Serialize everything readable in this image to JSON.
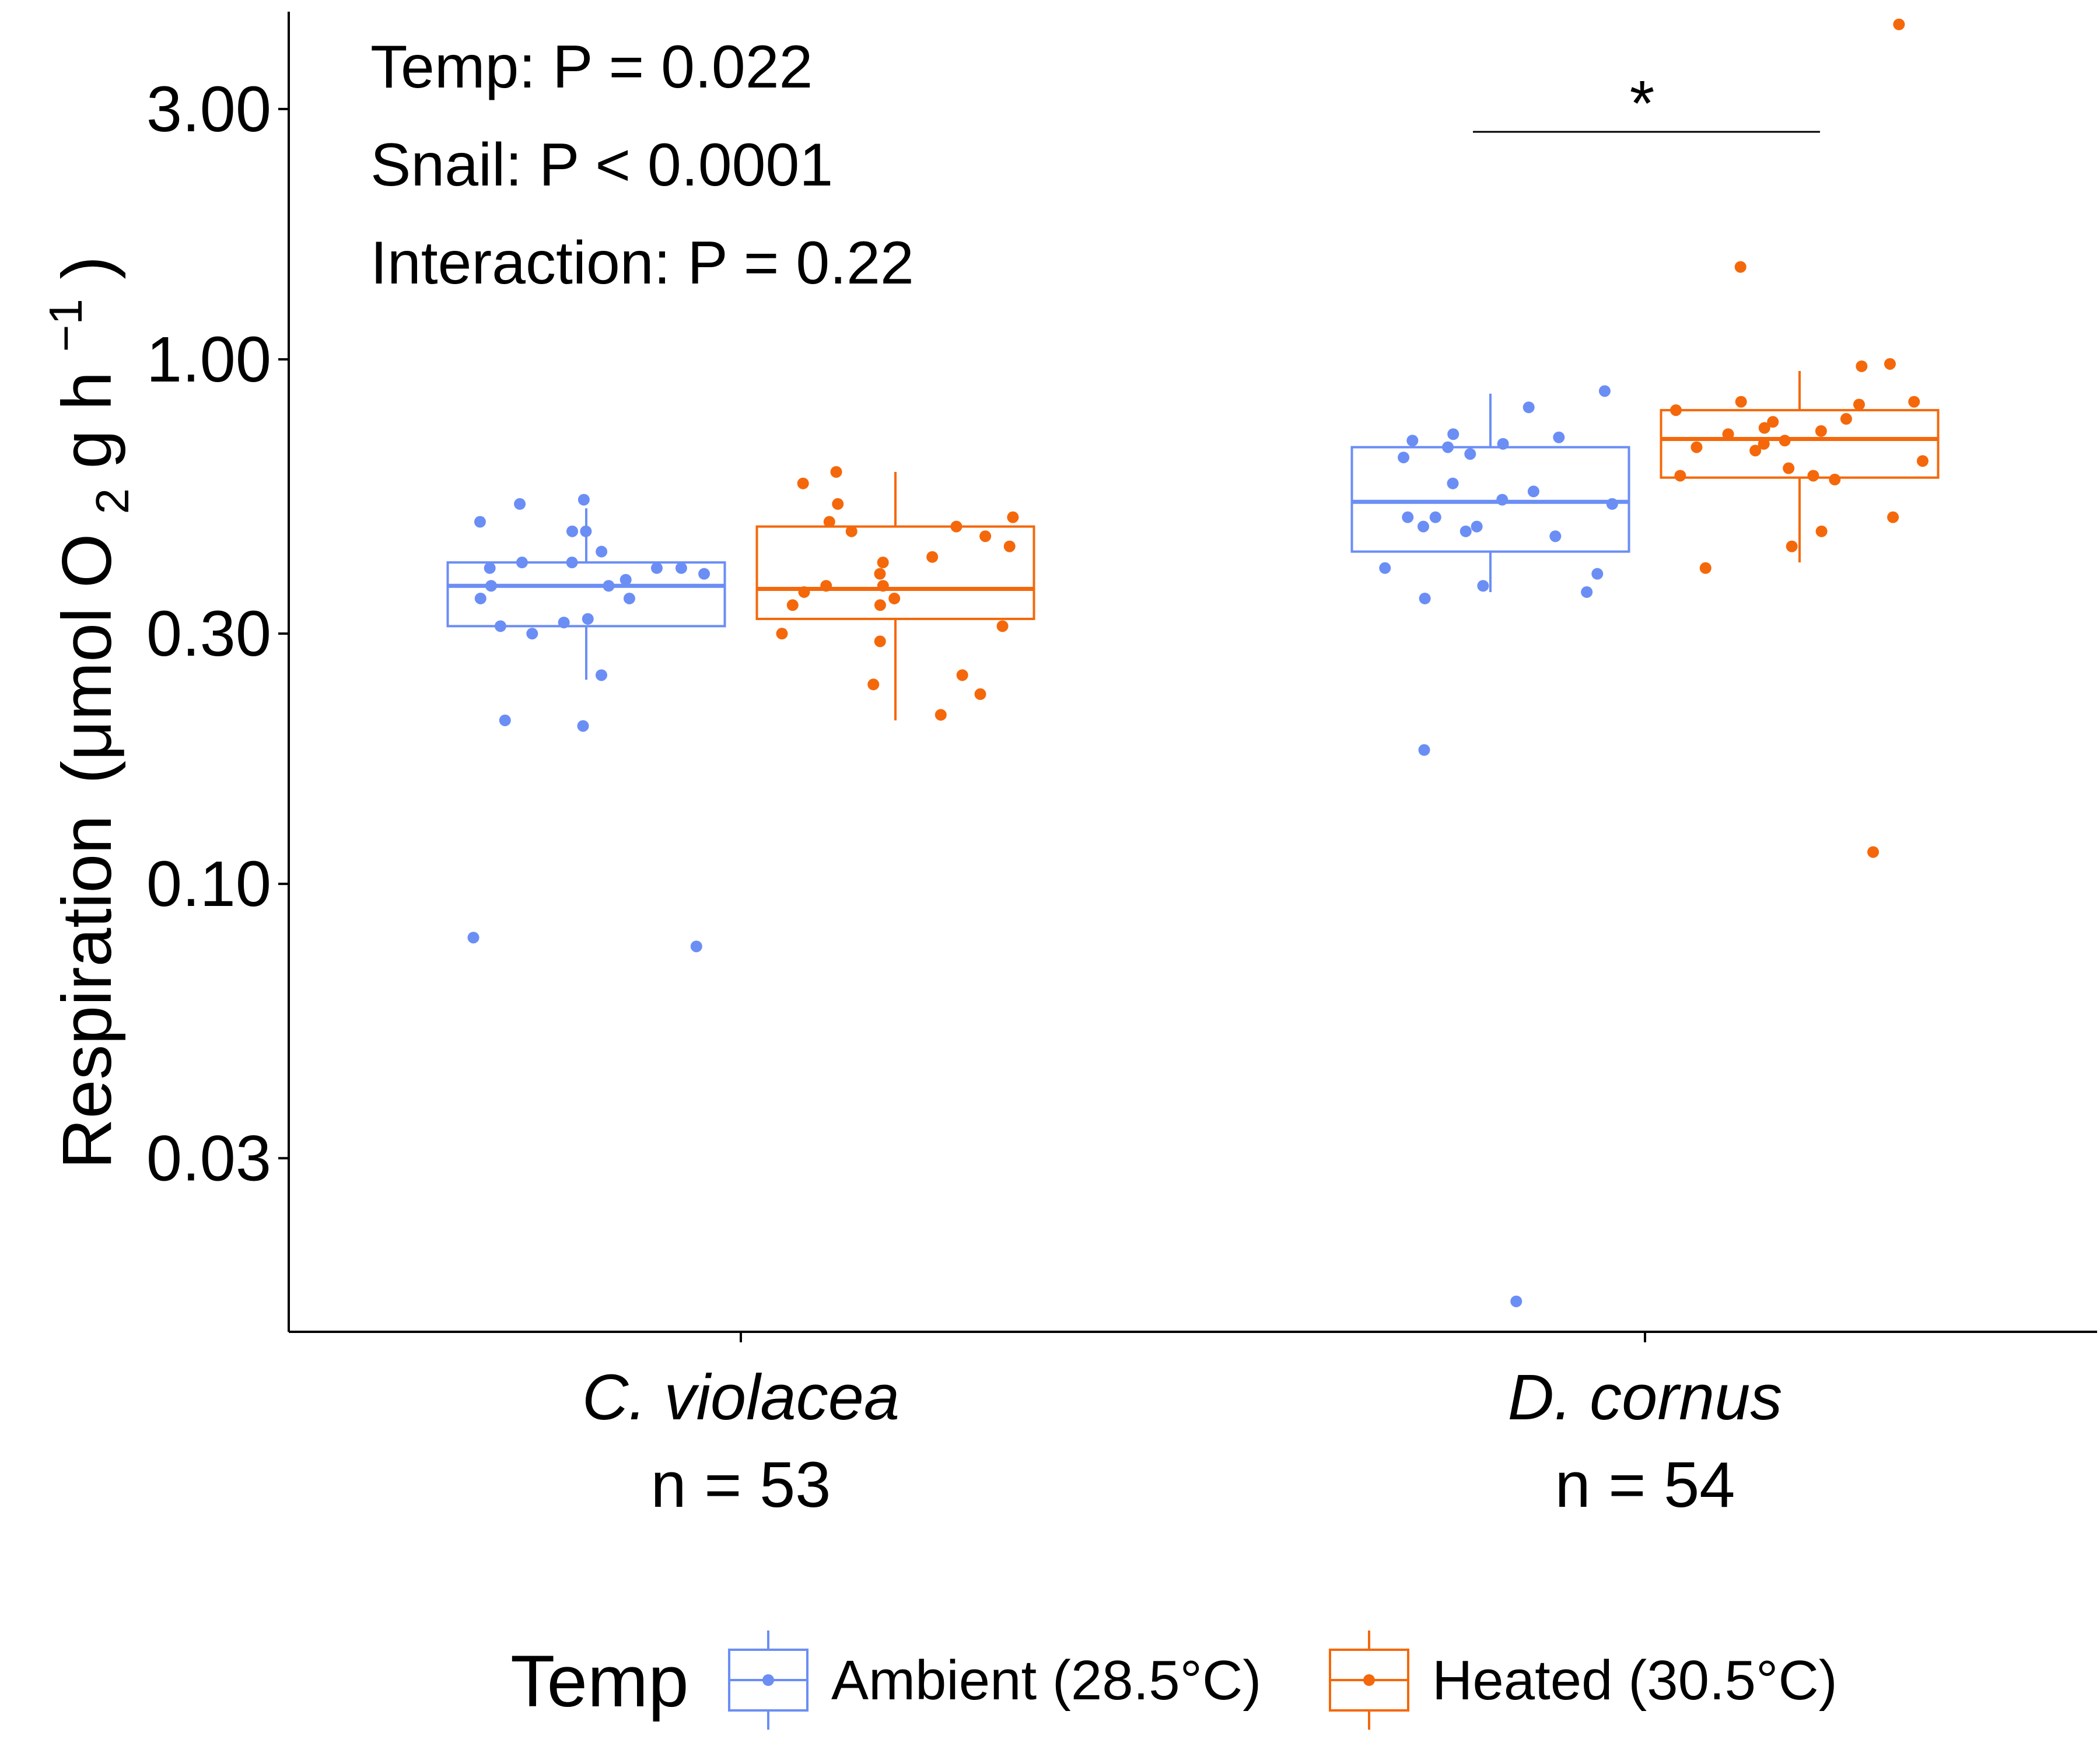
{
  "chart_data": {
    "type": "box",
    "ylabel": {
      "main": "Respiration",
      "unit_prefix": "(μmol O",
      "unit_sub": "2",
      "unit_mid": " g h",
      "unit_sup": "−1",
      "unit_suffix": ")"
    },
    "yscale": "log10",
    "ylim": [
      0.014,
      4.6
    ],
    "yticks": [
      {
        "value": 0.03,
        "label": "0.03"
      },
      {
        "value": 0.1,
        "label": "0.10"
      },
      {
        "value": 0.3,
        "label": "0.30"
      },
      {
        "value": 1.0,
        "label": "1.00"
      },
      {
        "value": 3.0,
        "label": "3.00"
      }
    ],
    "categories": [
      {
        "name": "C. violacea",
        "n_label": "n = 53"
      },
      {
        "name": "D. cornus",
        "n_label": "n = 54"
      }
    ],
    "annotations": [
      "Temp: P = 0.022",
      "Snail: P < 0.0001",
      "Interaction: P = 0.22"
    ],
    "significance": {
      "category_index": 1,
      "label": "*"
    },
    "legend": {
      "title": "Temp",
      "position": "bottom"
    },
    "grid": false,
    "series": [
      {
        "name": "Ambient (28.5°C)",
        "color": "#6b8ef5",
        "boxes": [
          {
            "q1": 0.31,
            "median": 0.37,
            "q3": 0.41,
            "whisker_low": 0.245,
            "whisker_high": 0.52
          },
          {
            "q1": 0.43,
            "median": 0.535,
            "q3": 0.68,
            "whisker_low": 0.36,
            "whisker_high": 0.86
          }
        ],
        "points": [
          [
            0.54,
            0.43,
            0.4,
            0.41,
            0.41,
            0.32,
            0.35,
            0.4,
            0.37,
            0.315,
            0.3,
            0.4,
            0.38,
            0.49,
            0.47,
            0.53,
            0.35,
            0.31,
            0.25,
            0.2,
            0.205,
            0.079,
            0.076,
            0.39,
            0.37,
            0.47
          ],
          [
            0.87,
            0.7,
            0.66,
            0.69,
            0.56,
            0.5,
            0.5,
            0.53,
            0.48,
            0.48,
            0.54,
            0.68,
            0.65,
            0.71,
            0.72,
            0.58,
            0.4,
            0.39,
            0.35,
            0.36,
            0.37,
            0.18,
            0.016,
            0.47,
            0.46,
            0.81
          ]
        ]
      },
      {
        "name": "Heated (30.5°C)",
        "color": "#f4680b",
        "boxes": [
          {
            "q1": 0.32,
            "median": 0.365,
            "q3": 0.48,
            "whisker_low": 0.205,
            "whisker_high": 0.61
          },
          {
            "q1": 0.595,
            "median": 0.705,
            "q3": 0.8,
            "whisker_low": 0.41,
            "whisker_high": 0.95
          }
        ],
        "points": [
          [
            0.36,
            0.37,
            0.41,
            0.34,
            0.3,
            0.24,
            0.21,
            0.42,
            0.44,
            0.47,
            0.39,
            0.35,
            0.29,
            0.23,
            0.37,
            0.34,
            0.61,
            0.49,
            0.48,
            0.58,
            0.53,
            0.25,
            0.46,
            0.5,
            0.31
          ],
          [
            0.98,
            0.97,
            0.59,
            0.6,
            0.6,
            0.67,
            0.69,
            0.72,
            0.76,
            0.77,
            0.82,
            0.83,
            0.83,
            0.8,
            0.74,
            0.73,
            0.7,
            0.68,
            0.64,
            0.62,
            0.5,
            0.47,
            0.44,
            0.4,
            0.115,
            4.35,
            1.5
          ]
        ]
      }
    ]
  }
}
